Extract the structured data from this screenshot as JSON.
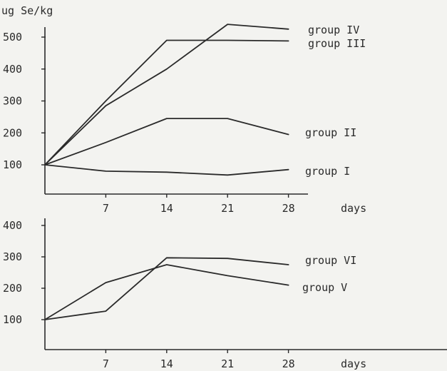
{
  "chart_data": [
    {
      "type": "line",
      "ylabel": "ug Se/kg",
      "xlabel": "days",
      "x": [
        0,
        7,
        14,
        21,
        28
      ],
      "xticks": [
        7,
        14,
        21,
        28
      ],
      "yticks": [
        100,
        200,
        300,
        400,
        500
      ],
      "xlim": [
        0,
        28
      ],
      "ylim": [
        55,
        530
      ],
      "grid": false,
      "series": [
        {
          "name": "group IV",
          "x": [
            0,
            7,
            14,
            21,
            28
          ],
          "values": [
            100,
            285,
            400,
            540,
            525
          ]
        },
        {
          "name": "group III",
          "x": [
            0,
            7,
            14,
            21,
            28
          ],
          "values": [
            100,
            300,
            490,
            490,
            488
          ]
        },
        {
          "name": "group II",
          "x": [
            0,
            7,
            14,
            21,
            28
          ],
          "values": [
            100,
            170,
            245,
            245,
            195
          ]
        },
        {
          "name": "group I",
          "x": [
            0,
            7,
            14,
            21,
            28
          ],
          "values": [
            100,
            80,
            77,
            68,
            85
          ]
        }
      ]
    },
    {
      "type": "line",
      "xlabel": "days",
      "x": [
        0,
        7,
        14,
        21,
        28
      ],
      "xticks": [
        7,
        14,
        21,
        28
      ],
      "yticks": [
        100,
        200,
        300,
        400
      ],
      "xlim": [
        0,
        28
      ],
      "ylim": [
        70,
        410
      ],
      "grid": false,
      "series": [
        {
          "name": "group VI",
          "x": [
            0,
            7,
            14,
            21,
            28
          ],
          "values": [
            100,
            127,
            297,
            295,
            275
          ]
        },
        {
          "name": "group V",
          "x": [
            0,
            7,
            14,
            21,
            28
          ],
          "values": [
            100,
            218,
            275,
            240,
            210
          ]
        }
      ]
    }
  ]
}
